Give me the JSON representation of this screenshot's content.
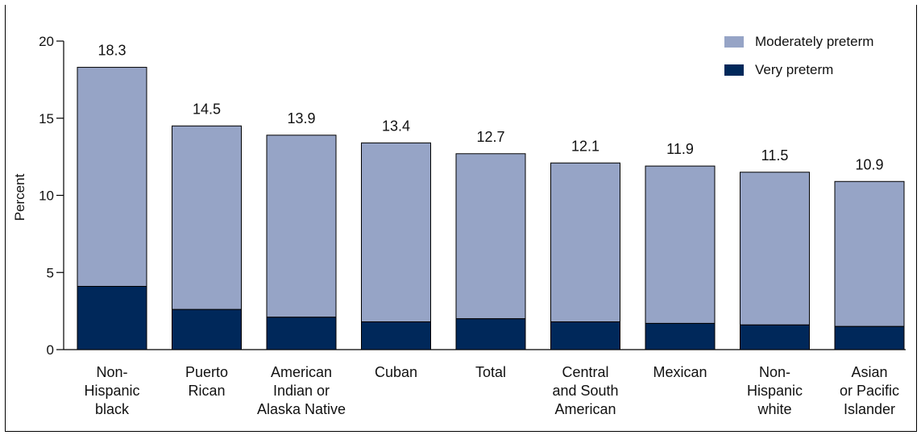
{
  "chart_data": {
    "type": "bar",
    "stacked": true,
    "categories": [
      [
        "Non-",
        "Hispanic",
        "black"
      ],
      [
        "Puerto",
        "Rican"
      ],
      [
        "American",
        "Indian or",
        "Alaska Native"
      ],
      [
        "Cuban"
      ],
      [
        "Total"
      ],
      [
        "Central",
        "and South",
        "American"
      ],
      [
        "Mexican"
      ],
      [
        "Non-",
        "Hispanic",
        "white"
      ],
      [
        "Asian",
        "or Pacific",
        "Islander"
      ]
    ],
    "totals": [
      18.3,
      14.5,
      13.9,
      13.4,
      12.7,
      12.1,
      11.9,
      11.5,
      10.9
    ],
    "total_labels": [
      "18.3",
      "14.5",
      "13.9",
      "13.4",
      "12.7",
      "12.1",
      "11.9",
      "11.5",
      "10.9"
    ],
    "series": [
      {
        "name": "Very preterm",
        "values": [
          4.1,
          2.6,
          2.1,
          1.8,
          2.0,
          1.8,
          1.7,
          1.6,
          1.5
        ],
        "color": "#00285a"
      },
      {
        "name": "Moderately preterm",
        "values": [
          14.2,
          11.9,
          11.8,
          11.6,
          10.7,
          10.3,
          10.2,
          9.9,
          9.4
        ],
        "color": "#96a4c6"
      }
    ],
    "ylabel": "Percent",
    "ylim": [
      0,
      20
    ],
    "yticks": [
      0,
      5,
      10,
      15,
      20
    ],
    "grid": false,
    "legend_position": "top-right"
  },
  "legend": {
    "moderately_label": "Moderately preterm",
    "moderately_color": "#96a4c6",
    "very_label": "Very preterm",
    "very_color": "#00285a"
  }
}
